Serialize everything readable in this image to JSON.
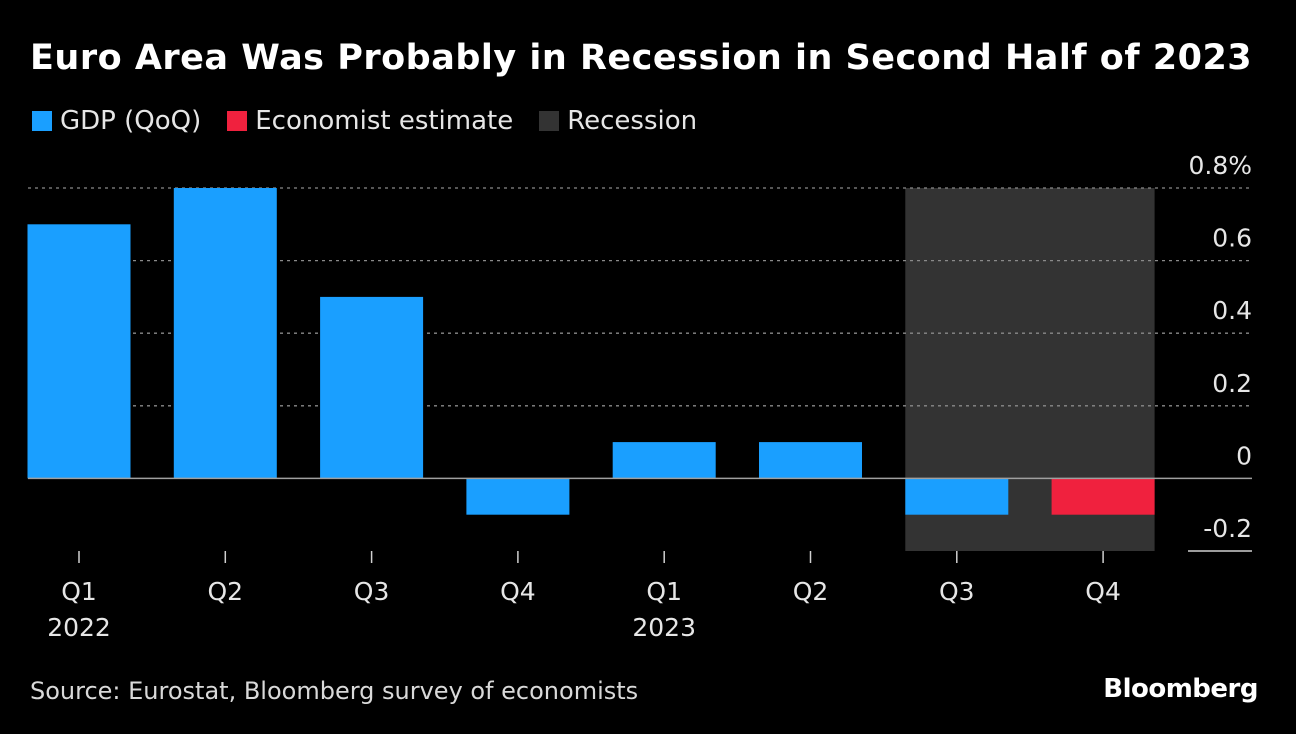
{
  "chart_data": {
    "type": "bar",
    "title": "Euro Area Was Probably in Recession in Second Half of 2023",
    "categories": [
      "Q1",
      "Q2",
      "Q3",
      "Q4",
      "Q1",
      "Q2",
      "Q3",
      "Q4"
    ],
    "year_labels": [
      "2022",
      "",
      "",
      "",
      "2023",
      "",
      "",
      ""
    ],
    "series": [
      {
        "name": "GDP (QoQ)",
        "color": "#1a9fff",
        "values": [
          0.7,
          0.8,
          0.5,
          -0.1,
          0.1,
          0.1,
          -0.1,
          null
        ]
      },
      {
        "name": "Economist estimate",
        "color": "#f0213e",
        "values": [
          null,
          null,
          null,
          null,
          null,
          null,
          null,
          -0.1
        ]
      }
    ],
    "shaded_region": {
      "name": "Recession",
      "color": "#333333",
      "from_category_index": 6,
      "to_category_index": 7
    },
    "ylim": [
      -0.2,
      0.8
    ],
    "yticks": [
      -0.2,
      0,
      0.2,
      0.4,
      0.6,
      0.8
    ],
    "ytick_labels": [
      "-0.2",
      "0",
      "0.2",
      "0.4",
      "0.6",
      "0.8%"
    ],
    "xlabel": "",
    "ylabel": "",
    "grid": true,
    "legend_position": "top-left"
  },
  "legend": [
    {
      "label": "GDP (QoQ)",
      "color": "#1a9fff"
    },
    {
      "label": "Economist estimate",
      "color": "#f0213e"
    },
    {
      "label": "Recession",
      "color": "#333333"
    }
  ],
  "source": "Source: Eurostat, Bloomberg survey of economists",
  "brand": "Bloomberg"
}
